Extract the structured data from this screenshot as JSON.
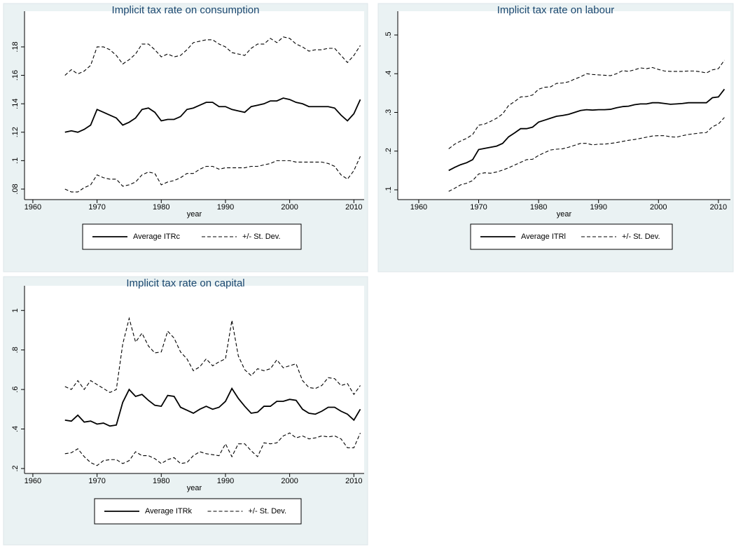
{
  "chart_data": [
    {
      "type": "line",
      "title": "Implicit tax rate on consumption",
      "xlabel": "year",
      "x": [
        1965,
        1966,
        1967,
        1968,
        1969,
        1970,
        1971,
        1972,
        1973,
        1974,
        1975,
        1976,
        1977,
        1978,
        1979,
        1980,
        1981,
        1982,
        1983,
        1984,
        1985,
        1986,
        1987,
        1988,
        1989,
        1990,
        1991,
        1992,
        1993,
        1994,
        1995,
        1996,
        1997,
        1998,
        1999,
        2000,
        2001,
        2002,
        2003,
        2004,
        2005,
        2006,
        2007,
        2008,
        2009,
        2010,
        2011
      ],
      "xlim": [
        1958.7,
        2011.6
      ],
      "xticks": [
        1960,
        1970,
        1980,
        1990,
        2000,
        2010
      ],
      "ylim": [
        0.0726,
        0.2051
      ],
      "yticks": [
        {
          "value": 0.08,
          "label": ".08"
        },
        {
          "value": 0.1,
          "label": ".1"
        },
        {
          "value": 0.12,
          "label": ".12"
        },
        {
          "value": 0.14,
          "label": ".14"
        },
        {
          "value": 0.16,
          "label": ".16"
        },
        {
          "value": 0.18,
          "label": ".18"
        }
      ],
      "series": [
        {
          "name": "Average ITRc",
          "color": "#000000",
          "dashed": false,
          "values": [
            0.12,
            0.121,
            0.12,
            0.122,
            0.125,
            0.136,
            0.134,
            0.132,
            0.13,
            0.125,
            0.127,
            0.13,
            0.136,
            0.137,
            0.134,
            0.128,
            0.129,
            0.129,
            0.131,
            0.136,
            0.137,
            0.139,
            0.141,
            0.141,
            0.138,
            0.138,
            0.136,
            0.135,
            0.134,
            0.138,
            0.139,
            0.14,
            0.142,
            0.142,
            0.144,
            0.143,
            0.141,
            0.14,
            0.138,
            0.138,
            0.138,
            0.138,
            0.137,
            0.132,
            0.128,
            0.133,
            0.143
          ]
        },
        {
          "name": "+/- St. Dev.",
          "color": "#000000",
          "dashed": true,
          "values": [
            0.16,
            0.164,
            0.161,
            0.163,
            0.167,
            0.18,
            0.18,
            0.178,
            0.174,
            0.168,
            0.171,
            0.175,
            0.182,
            0.182,
            0.178,
            0.173,
            0.175,
            0.173,
            0.174,
            0.178,
            0.183,
            0.184,
            0.185,
            0.185,
            0.182,
            0.18,
            0.176,
            0.175,
            0.174,
            0.179,
            0.182,
            0.182,
            0.186,
            0.183,
            0.187,
            0.186,
            0.182,
            0.18,
            0.177,
            0.178,
            0.178,
            0.179,
            0.179,
            0.174,
            0.169,
            0.174,
            0.181
          ]
        },
        {
          "color": "#000000",
          "dashed": true,
          "values": [
            0.08,
            0.078,
            0.078,
            0.081,
            0.083,
            0.09,
            0.088,
            0.087,
            0.087,
            0.082,
            0.083,
            0.085,
            0.09,
            0.092,
            0.091,
            0.083,
            0.085,
            0.086,
            0.088,
            0.091,
            0.091,
            0.094,
            0.096,
            0.096,
            0.094,
            0.095,
            0.095,
            0.095,
            0.095,
            0.096,
            0.096,
            0.097,
            0.098,
            0.1,
            0.1,
            0.1,
            0.099,
            0.099,
            0.099,
            0.099,
            0.099,
            0.098,
            0.096,
            0.09,
            0.087,
            0.093,
            0.103
          ]
        }
      ]
    },
    {
      "type": "line",
      "title": "Implicit tax rate on labour",
      "xlabel": "year",
      "x": [
        1965,
        1966,
        1967,
        1968,
        1969,
        1970,
        1971,
        1972,
        1973,
        1974,
        1975,
        1976,
        1977,
        1978,
        1979,
        1980,
        1981,
        1982,
        1983,
        1984,
        1985,
        1986,
        1987,
        1988,
        1989,
        1990,
        1991,
        1992,
        1993,
        1994,
        1995,
        1996,
        1997,
        1998,
        1999,
        2000,
        2001,
        2002,
        2003,
        2004,
        2005,
        2006,
        2007,
        2008,
        2009,
        2010,
        2011
      ],
      "xlim": [
        1956.5,
        2012
      ],
      "xticks": [
        1960,
        1970,
        1980,
        1990,
        2000,
        2010
      ],
      "ylim": [
        0.0747,
        0.5615
      ],
      "yticks": [
        {
          "value": 0.1,
          "label": ".1"
        },
        {
          "value": 0.2,
          "label": ".2"
        },
        {
          "value": 0.3,
          "label": ".3"
        },
        {
          "value": 0.4,
          "label": ".4"
        },
        {
          "value": 0.5,
          "label": ".5"
        }
      ],
      "series": [
        {
          "name": "Average ITRl",
          "color": "#000000",
          "dashed": false,
          "values": [
            0.15,
            0.158,
            0.165,
            0.17,
            0.178,
            0.204,
            0.207,
            0.21,
            0.213,
            0.22,
            0.237,
            0.247,
            0.258,
            0.258,
            0.262,
            0.275,
            0.28,
            0.285,
            0.29,
            0.292,
            0.295,
            0.3,
            0.305,
            0.307,
            0.306,
            0.307,
            0.307,
            0.308,
            0.312,
            0.315,
            0.316,
            0.32,
            0.322,
            0.322,
            0.325,
            0.325,
            0.323,
            0.321,
            0.322,
            0.323,
            0.325,
            0.325,
            0.325,
            0.325,
            0.338,
            0.34,
            0.36
          ]
        },
        {
          "name": "+/- St. Dev.",
          "color": "#000000",
          "dashed": true,
          "values": [
            0.206,
            0.218,
            0.226,
            0.233,
            0.243,
            0.267,
            0.27,
            0.277,
            0.285,
            0.296,
            0.318,
            0.328,
            0.34,
            0.341,
            0.345,
            0.36,
            0.365,
            0.366,
            0.375,
            0.376,
            0.379,
            0.386,
            0.392,
            0.4,
            0.398,
            0.397,
            0.396,
            0.395,
            0.4,
            0.408,
            0.406,
            0.41,
            0.415,
            0.413,
            0.416,
            0.411,
            0.407,
            0.406,
            0.406,
            0.406,
            0.407,
            0.407,
            0.405,
            0.402,
            0.41,
            0.413,
            0.435
          ]
        },
        {
          "color": "#000000",
          "dashed": true,
          "values": [
            0.096,
            0.104,
            0.113,
            0.117,
            0.124,
            0.141,
            0.144,
            0.143,
            0.146,
            0.151,
            0.157,
            0.164,
            0.171,
            0.178,
            0.179,
            0.189,
            0.196,
            0.203,
            0.205,
            0.206,
            0.21,
            0.215,
            0.22,
            0.22,
            0.216,
            0.218,
            0.218,
            0.22,
            0.222,
            0.225,
            0.228,
            0.23,
            0.233,
            0.236,
            0.239,
            0.24,
            0.24,
            0.237,
            0.236,
            0.24,
            0.243,
            0.245,
            0.247,
            0.248,
            0.263,
            0.27,
            0.287
          ]
        }
      ]
    },
    {
      "type": "line",
      "title": "Implicit tax rate on capital",
      "xlabel": "year",
      "x": [
        1965,
        1966,
        1967,
        1968,
        1969,
        1970,
        1971,
        1972,
        1973,
        1974,
        1975,
        1976,
        1977,
        1978,
        1979,
        1980,
        1981,
        1982,
        1983,
        1984,
        1985,
        1986,
        1987,
        1988,
        1989,
        1990,
        1991,
        1992,
        1993,
        1994,
        1995,
        1996,
        1997,
        1998,
        1999,
        2000,
        2001,
        2002,
        2003,
        2004,
        2005,
        2006,
        2007,
        2008,
        2009,
        2010,
        2011
      ],
      "xlim": [
        1958.7,
        2011.6
      ],
      "xticks": [
        1960,
        1970,
        1980,
        1990,
        2000,
        2010
      ],
      "ylim": [
        0.175,
        1.125
      ],
      "yticks": [
        {
          "value": 0.2,
          "label": ".2"
        },
        {
          "value": 0.4,
          "label": ".4"
        },
        {
          "value": 0.6,
          "label": ".6"
        },
        {
          "value": 0.8,
          "label": ".8"
        },
        1
      ],
      "series": [
        {
          "name": "Average ITRk",
          "color": "#000000",
          "dashed": false,
          "values": [
            0.445,
            0.44,
            0.47,
            0.435,
            0.44,
            0.425,
            0.43,
            0.415,
            0.42,
            0.535,
            0.6,
            0.565,
            0.575,
            0.545,
            0.52,
            0.515,
            0.57,
            0.565,
            0.51,
            0.495,
            0.48,
            0.5,
            0.515,
            0.5,
            0.51,
            0.54,
            0.605,
            0.555,
            0.515,
            0.48,
            0.485,
            0.515,
            0.515,
            0.54,
            0.54,
            0.55,
            0.545,
            0.5,
            0.48,
            0.475,
            0.49,
            0.51,
            0.51,
            0.49,
            0.475,
            0.445,
            0.5
          ]
        },
        {
          "name": "+/- St. Dev.",
          "color": "#000000",
          "dashed": true,
          "values": [
            0.615,
            0.6,
            0.645,
            0.6,
            0.645,
            0.625,
            0.605,
            0.585,
            0.6,
            0.83,
            0.96,
            0.84,
            0.885,
            0.82,
            0.785,
            0.79,
            0.895,
            0.86,
            0.79,
            0.755,
            0.695,
            0.715,
            0.755,
            0.72,
            0.74,
            0.755,
            0.95,
            0.77,
            0.7,
            0.67,
            0.705,
            0.695,
            0.705,
            0.75,
            0.71,
            0.72,
            0.73,
            0.645,
            0.61,
            0.605,
            0.62,
            0.66,
            0.655,
            0.62,
            0.63,
            0.575,
            0.62
          ]
        },
        {
          "color": "#000000",
          "dashed": true,
          "values": [
            0.275,
            0.28,
            0.3,
            0.26,
            0.23,
            0.215,
            0.24,
            0.245,
            0.245,
            0.225,
            0.24,
            0.285,
            0.265,
            0.265,
            0.25,
            0.225,
            0.245,
            0.255,
            0.225,
            0.23,
            0.265,
            0.285,
            0.275,
            0.27,
            0.265,
            0.325,
            0.26,
            0.325,
            0.325,
            0.29,
            0.26,
            0.33,
            0.325,
            0.33,
            0.365,
            0.38,
            0.355,
            0.365,
            0.35,
            0.355,
            0.365,
            0.36,
            0.365,
            0.35,
            0.305,
            0.305,
            0.38
          ]
        }
      ]
    }
  ]
}
